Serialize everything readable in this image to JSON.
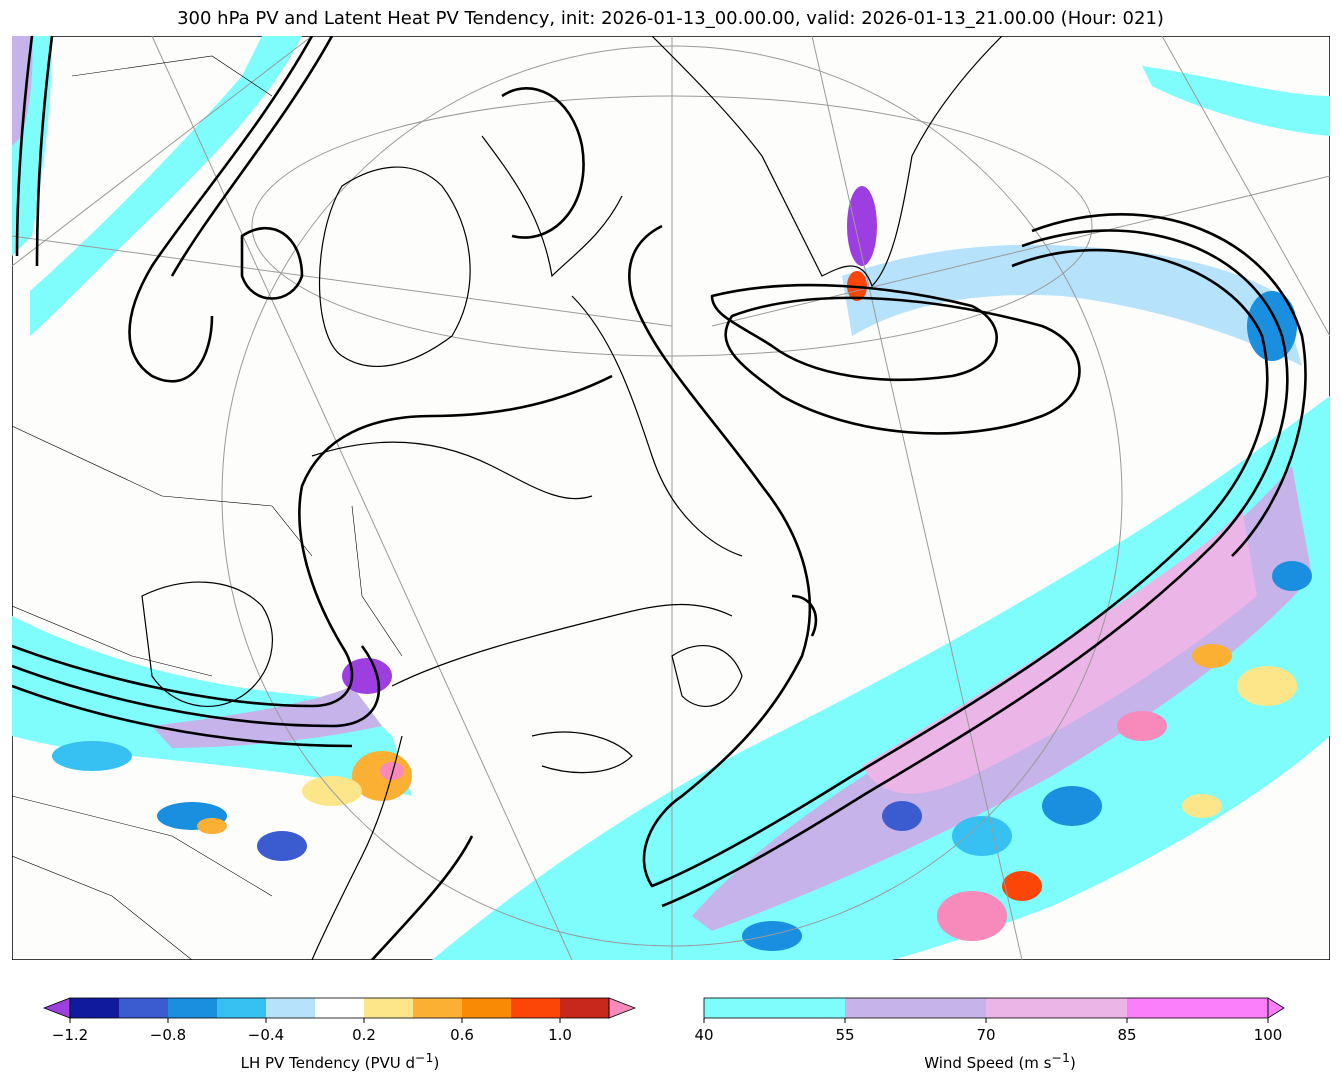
{
  "title": "300 hPa PV and Latent Heat PV Tendency, init: 2026-01-13_00.00.00, valid: 2026-01-13_21.00.00 (Hour: 021)",
  "colors": {
    "ocean": "#fdfdfb",
    "land_line": "#000000",
    "pv_contour": "#000000",
    "graticule": "#9a9a9a",
    "wind_40_55": "#7ffdfd",
    "wind_55_70": "#c5b3e9",
    "wind_70_85": "#ebb5e7",
    "wind_85_100": "#fb7ffb"
  },
  "lh_colorbar": {
    "label": "LH PV Tendency (PVU d",
    "label_sup": "−1",
    "label_close": ")",
    "ticks": [
      "−1.2",
      "−0.8",
      "−0.4",
      "0.2",
      "0.6",
      "1.0"
    ],
    "colors": [
      "#0f1a9d",
      "#3b5bd0",
      "#1a8fe0",
      "#36c1f2",
      "#b7e2fb",
      "#ffffff",
      "#fde68a",
      "#fbb034",
      "#f98a05",
      "#fb4608",
      "#c8281c"
    ],
    "under_color": "#9c3ee0",
    "over_color": "#f78aba"
  },
  "wind_colorbar": {
    "label": "Wind Speed (m s",
    "label_sup": "−1",
    "label_close": ")",
    "ticks": [
      "40",
      "55",
      "70",
      "85",
      "100"
    ],
    "colors": [
      "#7ffdfd",
      "#c5b3e9",
      "#ebb5e7",
      "#fb7ffb"
    ]
  }
}
